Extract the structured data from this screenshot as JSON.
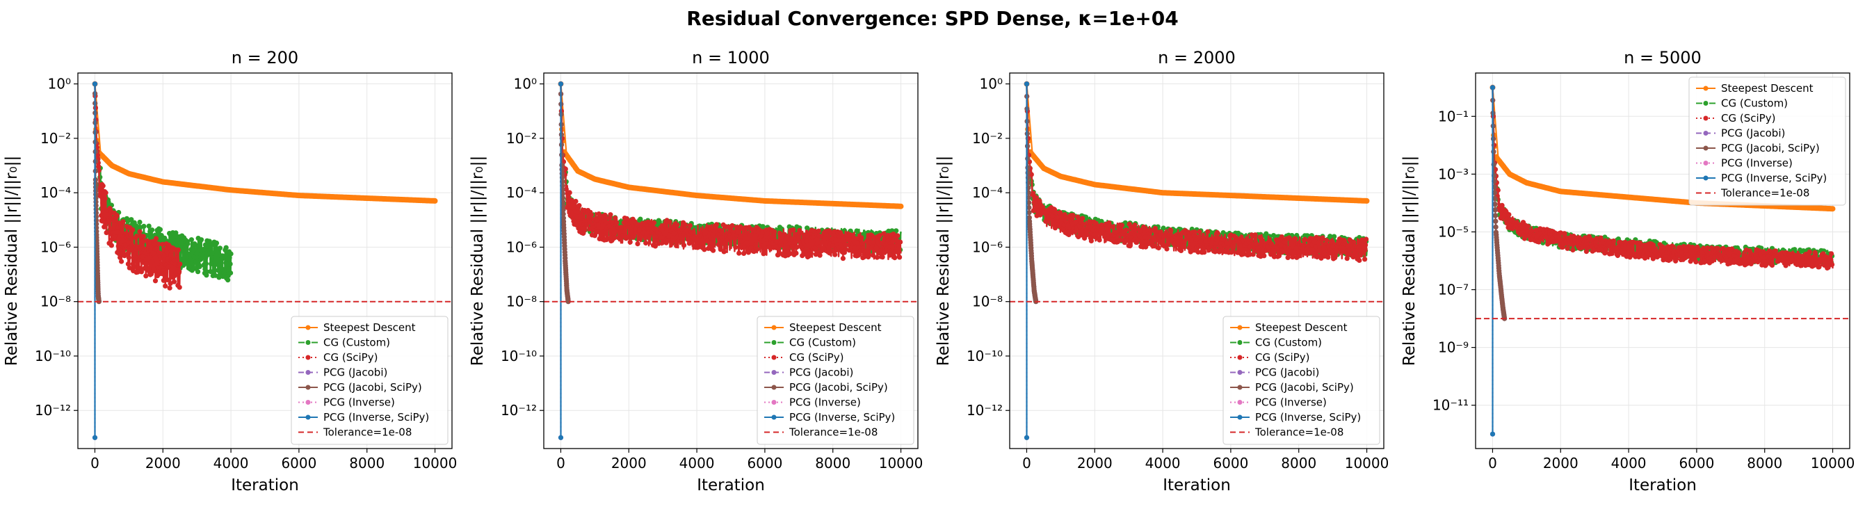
{
  "title": "Residual Convergence: SPD Dense, κ=1e+04",
  "colors": {
    "Steepest Descent": "#ff7f0e",
    "CG (Custom)": "#2ca02c",
    "CG (SciPy)": "#d62728",
    "PCG (Jacobi)": "#9467bd",
    "PCG (Jacobi, SciPy)": "#8c564b",
    "PCG (Inverse)": "#e377c2",
    "PCG (Inverse, SciPy)": "#1f77b4",
    "Tolerance=1e-08": "#d62728"
  },
  "legend_entries": [
    {
      "label": "Steepest Descent",
      "style": "solid",
      "marker": true
    },
    {
      "label": "CG (Custom)",
      "style": "dashdot",
      "marker": true
    },
    {
      "label": "CG (SciPy)",
      "style": "dotted",
      "marker": true
    },
    {
      "label": "PCG (Jacobi)",
      "style": "dashed",
      "marker": true
    },
    {
      "label": "PCG (Jacobi, SciPy)",
      "style": "solid",
      "marker": true
    },
    {
      "label": "PCG (Inverse)",
      "style": "dotted",
      "marker": true
    },
    {
      "label": "PCG (Inverse, SciPy)",
      "style": "solid",
      "marker": true
    },
    {
      "label": "Tolerance=1e-08",
      "style": "dashed",
      "marker": false
    }
  ],
  "chart_data": [
    {
      "type": "line",
      "title": "n = 200",
      "xlabel": "Iteration",
      "ylabel": "Relative Residual ||r||/||r₀||",
      "xlim": [
        -500,
        10500
      ],
      "ylim_log10": [
        -13.4,
        0.4
      ],
      "xticks": [
        0,
        2000,
        4000,
        6000,
        8000,
        10000
      ],
      "yticks_exp": [
        0,
        -2,
        -4,
        -6,
        -8,
        -10,
        -12
      ],
      "y_scale": "log",
      "grid": true,
      "legend_position": "lower-right",
      "tolerance": 1e-08,
      "series": [
        {
          "name": "Steepest Descent",
          "x": [
            0,
            20,
            100,
            500,
            1000,
            2000,
            4000,
            6000,
            8000,
            10000
          ],
          "y_log10": [
            0,
            -1.5,
            -2.5,
            -3.0,
            -3.3,
            -3.6,
            -3.9,
            -4.1,
            -4.2,
            -4.3
          ]
        },
        {
          "name": "CG (Custom)",
          "x": [
            0,
            50,
            200,
            500,
            1000,
            2000,
            3000,
            4000
          ],
          "y_log10": [
            0,
            -2.2,
            -4.3,
            -5.1,
            -5.6,
            -6.0,
            -6.3,
            -6.6
          ],
          "band_log10": 1.3
        },
        {
          "name": "CG (SciPy)",
          "x": [
            0,
            50,
            200,
            500,
            1000,
            1500,
            2000,
            2500
          ],
          "y_log10": [
            0,
            -2.2,
            -4.3,
            -5.4,
            -6.0,
            -6.3,
            -6.6,
            -6.9
          ],
          "band_log10": 1.6
        },
        {
          "name": "PCG (Jacobi)",
          "x": [
            0,
            20,
            50,
            80,
            100,
            120
          ],
          "y_log10": [
            0,
            -3.5,
            -5.5,
            -7.0,
            -7.8,
            -8.0
          ]
        },
        {
          "name": "PCG (Jacobi, SciPy)",
          "x": [
            0,
            20,
            50,
            80,
            100,
            120
          ],
          "y_log10": [
            0,
            -3.5,
            -5.5,
            -7.0,
            -7.8,
            -8.0
          ]
        },
        {
          "name": "PCG (Inverse)",
          "x": [
            0,
            1
          ],
          "y_log10": [
            0,
            -13.0
          ]
        },
        {
          "name": "PCG (Inverse, SciPy)",
          "x": [
            0,
            1
          ],
          "y_log10": [
            0,
            -13.0
          ]
        }
      ]
    },
    {
      "type": "line",
      "title": "n = 1000",
      "xlabel": "Iteration",
      "ylabel": "Relative Residual ||r||/||r₀||",
      "xlim": [
        -500,
        10500
      ],
      "ylim_log10": [
        -13.4,
        0.4
      ],
      "xticks": [
        0,
        2000,
        4000,
        6000,
        8000,
        10000
      ],
      "yticks_exp": [
        0,
        -2,
        -4,
        -6,
        -8,
        -10,
        -12
      ],
      "y_scale": "log",
      "grid": true,
      "legend_position": "lower-right",
      "tolerance": 1e-08,
      "series": [
        {
          "name": "Steepest Descent",
          "x": [
            0,
            20,
            100,
            500,
            1000,
            2000,
            4000,
            6000,
            8000,
            10000
          ],
          "y_log10": [
            0,
            -1.5,
            -2.5,
            -3.2,
            -3.5,
            -3.8,
            -4.1,
            -4.3,
            -4.4,
            -4.5
          ]
        },
        {
          "name": "CG (Custom)",
          "x": [
            0,
            50,
            200,
            500,
            1000,
            2000,
            4000,
            6000,
            8000,
            10000
          ],
          "y_log10": [
            0,
            -2.5,
            -4.3,
            -4.9,
            -5.1,
            -5.3,
            -5.5,
            -5.6,
            -5.7,
            -5.8
          ],
          "band_log10": 0.8
        },
        {
          "name": "CG (SciPy)",
          "x": [
            0,
            50,
            200,
            500,
            1000,
            2000,
            4000,
            6000,
            8000,
            10000
          ],
          "y_log10": [
            0,
            -2.5,
            -4.3,
            -4.9,
            -5.2,
            -5.4,
            -5.6,
            -5.8,
            -5.9,
            -6.0
          ],
          "band_log10": 1.0
        },
        {
          "name": "PCG (Jacobi)",
          "x": [
            0,
            30,
            80,
            130,
            180,
            220
          ],
          "y_log10": [
            0,
            -3.0,
            -5.0,
            -6.5,
            -7.6,
            -8.0
          ]
        },
        {
          "name": "PCG (Jacobi, SciPy)",
          "x": [
            0,
            30,
            80,
            130,
            180,
            220
          ],
          "y_log10": [
            0,
            -3.0,
            -5.0,
            -6.5,
            -7.6,
            -8.0
          ]
        },
        {
          "name": "PCG (Inverse)",
          "x": [
            0,
            1
          ],
          "y_log10": [
            0,
            -13.0
          ]
        },
        {
          "name": "PCG (Inverse, SciPy)",
          "x": [
            0,
            1
          ],
          "y_log10": [
            0,
            -13.0
          ]
        }
      ]
    },
    {
      "type": "line",
      "title": "n = 2000",
      "xlabel": "Iteration",
      "ylabel": "Relative Residual ||r||/||r₀||",
      "xlim": [
        -500,
        10500
      ],
      "ylim_log10": [
        -13.4,
        0.4
      ],
      "xticks": [
        0,
        2000,
        4000,
        6000,
        8000,
        10000
      ],
      "yticks_exp": [
        0,
        -2,
        -4,
        -6,
        -8,
        -10,
        -12
      ],
      "y_scale": "log",
      "grid": true,
      "legend_position": "lower-right",
      "tolerance": 1e-08,
      "series": [
        {
          "name": "Steepest Descent",
          "x": [
            0,
            20,
            100,
            500,
            1000,
            2000,
            4000,
            6000,
            8000,
            10000
          ],
          "y_log10": [
            0,
            -1.5,
            -2.5,
            -3.1,
            -3.4,
            -3.7,
            -4.0,
            -4.1,
            -4.2,
            -4.3
          ]
        },
        {
          "name": "CG (Custom)",
          "x": [
            0,
            50,
            200,
            500,
            1000,
            2000,
            4000,
            6000,
            8000,
            10000
          ],
          "y_log10": [
            0,
            -2.5,
            -4.3,
            -4.7,
            -5.0,
            -5.3,
            -5.6,
            -5.8,
            -5.9,
            -6.0
          ],
          "band_log10": 0.7
        },
        {
          "name": "CG (SciPy)",
          "x": [
            0,
            50,
            200,
            500,
            1000,
            2000,
            4000,
            6000,
            8000,
            10000
          ],
          "y_log10": [
            0,
            -2.5,
            -4.3,
            -4.8,
            -5.1,
            -5.4,
            -5.7,
            -5.9,
            -6.0,
            -6.1
          ],
          "band_log10": 0.8
        },
        {
          "name": "PCG (Jacobi)",
          "x": [
            0,
            30,
            80,
            150,
            220,
            270
          ],
          "y_log10": [
            0,
            -3.0,
            -5.0,
            -6.5,
            -7.6,
            -8.0
          ]
        },
        {
          "name": "PCG (Jacobi, SciPy)",
          "x": [
            0,
            30,
            80,
            150,
            220,
            270
          ],
          "y_log10": [
            0,
            -3.0,
            -5.0,
            -6.5,
            -7.6,
            -8.0
          ]
        },
        {
          "name": "PCG (Inverse)",
          "x": [
            0,
            1
          ],
          "y_log10": [
            0,
            -13.0
          ]
        },
        {
          "name": "PCG (Inverse, SciPy)",
          "x": [
            0,
            1
          ],
          "y_log10": [
            0,
            -13.0
          ]
        }
      ]
    },
    {
      "type": "line",
      "title": "n = 5000",
      "xlabel": "Iteration",
      "ylabel": "Relative Residual ||r||/||r₀||",
      "xlim": [
        -500,
        10500
      ],
      "ylim_log10": [
        -12.5,
        0.5
      ],
      "xticks": [
        0,
        2000,
        4000,
        6000,
        8000,
        10000
      ],
      "yticks_exp": [
        -1,
        -3,
        -5,
        -7,
        -9,
        -11
      ],
      "y_scale": "log",
      "grid": true,
      "legend_position": "upper-right",
      "tolerance": 1e-08,
      "series": [
        {
          "name": "Steepest Descent",
          "x": [
            0,
            20,
            100,
            500,
            1000,
            2000,
            4000,
            6000,
            8000,
            10000
          ],
          "y_log10": [
            0,
            -1.5,
            -2.4,
            -3.0,
            -3.3,
            -3.6,
            -3.8,
            -4.0,
            -4.1,
            -4.2
          ]
        },
        {
          "name": "CG (Custom)",
          "x": [
            0,
            50,
            200,
            500,
            1000,
            2000,
            4000,
            6000,
            8000,
            10000
          ],
          "y_log10": [
            0,
            -2.5,
            -4.2,
            -4.7,
            -5.0,
            -5.3,
            -5.5,
            -5.7,
            -5.8,
            -5.9
          ],
          "band_log10": 0.5
        },
        {
          "name": "CG (SciPy)",
          "x": [
            0,
            50,
            200,
            500,
            1000,
            2000,
            4000,
            6000,
            8000,
            10000
          ],
          "y_log10": [
            0,
            -2.5,
            -4.2,
            -4.7,
            -5.0,
            -5.3,
            -5.6,
            -5.8,
            -5.9,
            -6.0
          ],
          "band_log10": 0.55
        },
        {
          "name": "PCG (Jacobi)",
          "x": [
            0,
            40,
            100,
            200,
            300,
            350
          ],
          "y_log10": [
            0,
            -3.0,
            -5.0,
            -6.5,
            -7.6,
            -8.0
          ]
        },
        {
          "name": "PCG (Jacobi, SciPy)",
          "x": [
            0,
            40,
            100,
            200,
            300,
            350
          ],
          "y_log10": [
            0,
            -3.0,
            -5.0,
            -6.5,
            -7.6,
            -8.0
          ]
        },
        {
          "name": "PCG (Inverse)",
          "x": [
            0,
            1
          ],
          "y_log10": [
            0,
            -12.0
          ]
        },
        {
          "name": "PCG (Inverse, SciPy)",
          "x": [
            0,
            1
          ],
          "y_log10": [
            0,
            -12.0
          ]
        }
      ]
    }
  ]
}
